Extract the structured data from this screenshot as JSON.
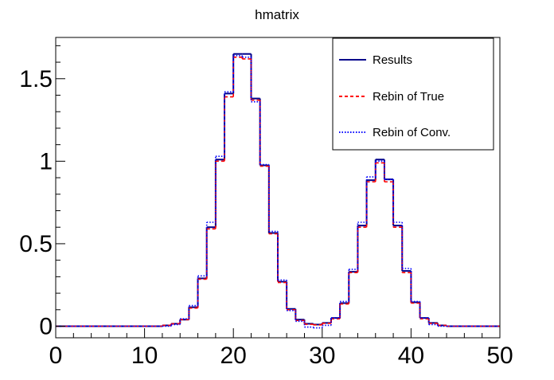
{
  "chart_data": {
    "type": "line",
    "title": "hmatrix",
    "xlabel": "",
    "ylabel": "",
    "xlim": [
      0,
      50
    ],
    "ylim": [
      -0.07,
      1.75
    ],
    "x_ticks": [
      0,
      10,
      20,
      30,
      40,
      50
    ],
    "x_tick_labels": [
      "0",
      "10",
      "20",
      "30",
      "40",
      "50"
    ],
    "y_ticks": [
      0,
      0.5,
      1,
      1.5
    ],
    "y_tick_labels": [
      "0",
      "0.5",
      "1",
      "1.5"
    ],
    "bin_width": 1,
    "x": [
      0,
      1,
      2,
      3,
      4,
      5,
      6,
      7,
      8,
      9,
      10,
      11,
      12,
      13,
      14,
      15,
      16,
      17,
      18,
      19,
      20,
      21,
      22,
      23,
      24,
      25,
      26,
      27,
      28,
      29,
      30,
      31,
      32,
      33,
      34,
      35,
      36,
      37,
      38,
      39,
      40,
      41,
      42,
      43,
      44,
      45,
      46,
      47,
      48,
      49
    ],
    "series": [
      {
        "name": "Results",
        "color": "#00008b",
        "style": "solid",
        "values": [
          0,
          0,
          0,
          0,
          0,
          0,
          0,
          0,
          0,
          0,
          0,
          0,
          0.005,
          0.015,
          0.04,
          0.115,
          0.29,
          0.6,
          1.01,
          1.41,
          1.65,
          1.65,
          1.38,
          0.975,
          0.565,
          0.27,
          0.105,
          0.04,
          0.015,
          0.01,
          0.02,
          0.05,
          0.14,
          0.33,
          0.61,
          0.885,
          1.01,
          0.89,
          0.61,
          0.335,
          0.145,
          0.05,
          0.02,
          0.005,
          0,
          0,
          0,
          0,
          0,
          0
        ]
      },
      {
        "name": "Rebin of True",
        "color": "#ff0000",
        "style": "dashed",
        "values": [
          0,
          0,
          0,
          0,
          0,
          0,
          0,
          0,
          0,
          0,
          0,
          0,
          0.005,
          0.015,
          0.04,
          0.11,
          0.285,
          0.59,
          1.0,
          1.39,
          1.63,
          1.62,
          1.37,
          0.97,
          0.56,
          0.265,
          0.1,
          0.035,
          0.012,
          0.008,
          0.018,
          0.045,
          0.135,
          0.325,
          0.6,
          0.875,
          0.99,
          0.875,
          0.6,
          0.325,
          0.14,
          0.045,
          0.017,
          0.005,
          0,
          0,
          0,
          0,
          0,
          0
        ]
      },
      {
        "name": "Rebin of Conv.",
        "color": "#0000ff",
        "style": "dotted",
        "values": [
          0,
          0,
          0,
          0,
          0,
          0,
          0,
          0,
          0,
          0,
          0,
          0,
          0,
          0.01,
          0.045,
          0.125,
          0.305,
          0.63,
          1.03,
          1.42,
          1.64,
          1.63,
          1.36,
          0.98,
          0.575,
          0.28,
          0.095,
          0.03,
          -0.005,
          -0.01,
          0.005,
          0.05,
          0.15,
          0.345,
          0.63,
          0.905,
          1.0,
          0.89,
          0.63,
          0.35,
          0.15,
          0.05,
          0.01,
          0,
          0,
          0,
          0,
          0,
          0,
          0
        ]
      }
    ],
    "legend": {
      "placement": "top-right",
      "entries": [
        "Results",
        "Rebin of True",
        "Rebin of Conv."
      ]
    },
    "grid": false
  }
}
